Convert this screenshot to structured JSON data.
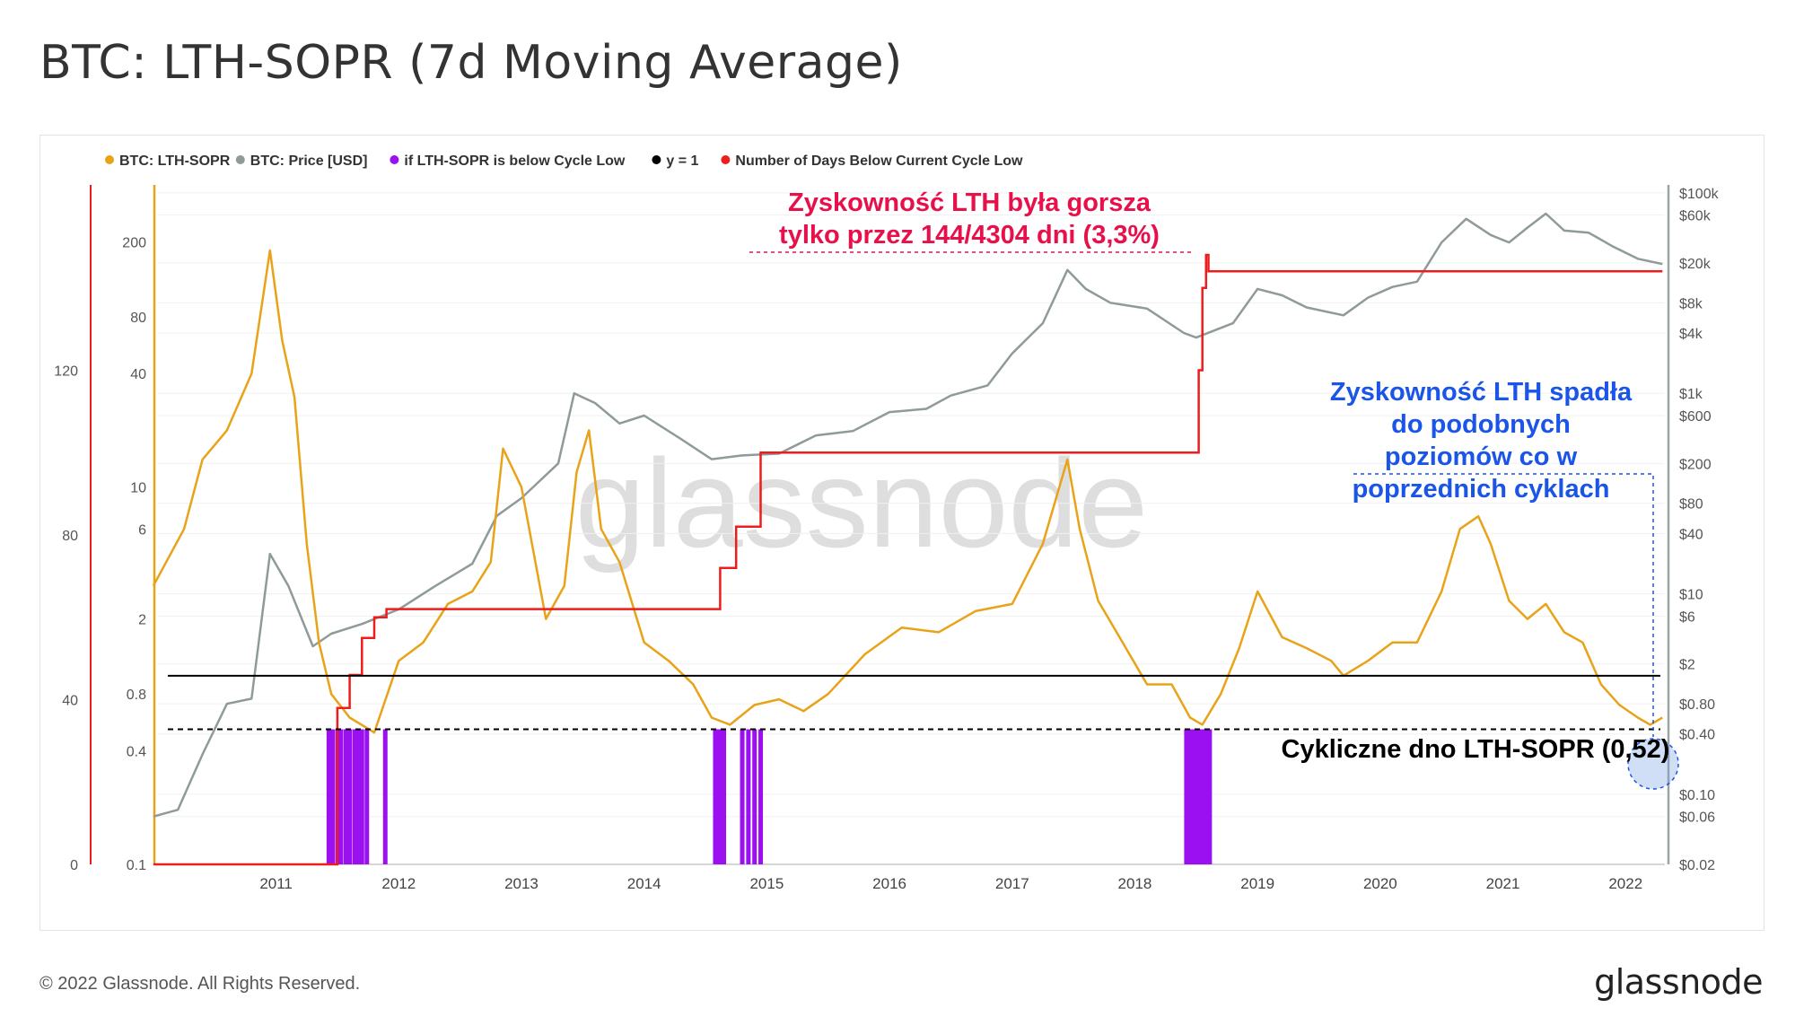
{
  "title": "BTC: LTH-SOPR (7d Moving Average)",
  "footer": {
    "copyright": "© 2022 Glassnode. All Rights Reserved.",
    "brand": "glassnode"
  },
  "watermark": "glassnode",
  "colors": {
    "sopr": "#e8a318",
    "price": "#8f9a9a",
    "below": "#9b10f0",
    "one": "#000000",
    "days": "#ee1c1c",
    "note_red": "#e8104a",
    "note_blue": "#1a55e8"
  },
  "chart_data": {
    "type": "line",
    "legend_position": "top-left",
    "legend": [
      {
        "name": "BTC: LTH-SOPR",
        "color": "#e8a318"
      },
      {
        "name": "BTC: Price [USD]",
        "color": "#8f9a9a"
      },
      {
        "name": "if LTH-SOPR is below Cycle Low",
        "color": "#9b10f0"
      },
      {
        "name": "y = 1",
        "color": "#000000"
      },
      {
        "name": "Number of Days Below Current Cycle Low",
        "color": "#ee1c1c"
      }
    ],
    "x_ticks": [
      "2011",
      "2012",
      "2013",
      "2014",
      "2015",
      "2016",
      "2017",
      "2018",
      "2019",
      "2020",
      "2021",
      "2022"
    ],
    "y_days_ticks": [
      "0",
      "40",
      "80",
      "120"
    ],
    "y_days_range": [
      0,
      165
    ],
    "y_sopr_ticks": [
      "0.1",
      "0.4",
      "0.8",
      "2",
      "6",
      "10",
      "40",
      "80",
      "200"
    ],
    "y_sopr_range": [
      0.1,
      400
    ],
    "y_sopr_scale": "log",
    "y_price_ticks": [
      "$0.02",
      "$0.06",
      "$0.10",
      "$0.40",
      "$0.80",
      "$2",
      "$6",
      "$10",
      "$40",
      "$80",
      "$200",
      "$600",
      "$1k",
      "$4k",
      "$8k",
      "$20k",
      "$60k",
      "$100k"
    ],
    "y_price_range": [
      0.02,
      120000
    ],
    "y_price_scale": "log",
    "reference_lines": [
      {
        "name": "y = 1",
        "value": 1,
        "style": "solid"
      },
      {
        "name": "cycle low",
        "value": 0.52,
        "style": "dashed"
      }
    ],
    "series": [
      {
        "name": "BTC: LTH-SOPR",
        "x": [
          2010.5,
          2010.75,
          2010.9,
          2011.1,
          2011.3,
          2011.45,
          2011.55,
          2011.65,
          2011.75,
          2011.85,
          2011.95,
          2012.1,
          2012.3,
          2012.5,
          2012.7,
          2012.9,
          2013.1,
          2013.25,
          2013.35,
          2013.5,
          2013.7,
          2013.85,
          2013.95,
          2014.05,
          2014.15,
          2014.3,
          2014.5,
          2014.7,
          2014.9,
          2015.05,
          2015.2,
          2015.4,
          2015.6,
          2015.8,
          2016.0,
          2016.3,
          2016.6,
          2016.9,
          2017.2,
          2017.5,
          2017.75,
          2017.95,
          2018.05,
          2018.2,
          2018.4,
          2018.6,
          2018.8,
          2018.95,
          2019.05,
          2019.2,
          2019.35,
          2019.5,
          2019.7,
          2019.9,
          2020.1,
          2020.2,
          2020.4,
          2020.6,
          2020.8,
          2021.0,
          2021.15,
          2021.3,
          2021.4,
          2021.55,
          2021.7,
          2021.85,
          2022.0,
          2022.15,
          2022.3,
          2022.45,
          2022.6,
          2022.7,
          2022.8
        ],
        "values": [
          3.0,
          6.0,
          14.0,
          20.0,
          40.0,
          180.0,
          60.0,
          30.0,
          5.0,
          1.5,
          0.8,
          0.6,
          0.5,
          1.2,
          1.5,
          2.4,
          2.8,
          4.0,
          16.0,
          10.0,
          2.0,
          3.0,
          12.0,
          20.0,
          6.0,
          4.0,
          1.5,
          1.2,
          0.9,
          0.6,
          0.55,
          0.7,
          0.75,
          0.65,
          0.8,
          1.3,
          1.8,
          1.7,
          2.2,
          2.4,
          5.0,
          14.0,
          6.0,
          2.5,
          1.5,
          0.9,
          0.9,
          0.6,
          0.55,
          0.8,
          1.4,
          2.8,
          1.6,
          1.4,
          1.2,
          1.0,
          1.2,
          1.5,
          1.5,
          2.8,
          6.0,
          7.0,
          5.0,
          2.5,
          2.0,
          2.4,
          1.7,
          1.5,
          0.9,
          0.7,
          0.6,
          0.55,
          0.6
        ]
      },
      {
        "name": "BTC: Price [USD]",
        "x": [
          2010.5,
          2010.7,
          2010.9,
          2011.1,
          2011.3,
          2011.45,
          2011.6,
          2011.8,
          2011.95,
          2012.2,
          2012.5,
          2012.8,
          2013.1,
          2013.3,
          2013.5,
          2013.8,
          2013.93,
          2014.1,
          2014.3,
          2014.5,
          2014.8,
          2015.05,
          2015.3,
          2015.6,
          2015.9,
          2016.2,
          2016.5,
          2016.8,
          2017.0,
          2017.3,
          2017.5,
          2017.75,
          2017.95,
          2018.1,
          2018.3,
          2018.6,
          2018.9,
          2019.0,
          2019.3,
          2019.5,
          2019.7,
          2019.9,
          2020.2,
          2020.4,
          2020.6,
          2020.8,
          2021.0,
          2021.2,
          2021.4,
          2021.55,
          2021.7,
          2021.85,
          2022.0,
          2022.2,
          2022.4,
          2022.6,
          2022.8
        ],
        "values": [
          0.06,
          0.07,
          0.25,
          0.8,
          0.9,
          25.0,
          12.0,
          3.0,
          4.0,
          5.0,
          7.0,
          12.0,
          20.0,
          60.0,
          90.0,
          200.0,
          1000.0,
          800.0,
          500.0,
          600.0,
          350.0,
          220.0,
          240.0,
          250.0,
          380.0,
          420.0,
          650.0,
          700.0,
          950.0,
          1200.0,
          2500.0,
          5000.0,
          17000.0,
          11000.0,
          8000.0,
          7000.0,
          4000.0,
          3600.0,
          5000.0,
          11000.0,
          9500.0,
          7200.0,
          6000.0,
          9000.0,
          11500.0,
          13000.0,
          32000.0,
          55000.0,
          38000.0,
          32000.0,
          45000.0,
          62000.0,
          42000.0,
          40000.0,
          29000.0,
          22000.0,
          19500.0
        ]
      },
      {
        "name": "Number of Days Below Current Cycle Low",
        "x": [
          2010.5,
          2011.9,
          2012.0,
          2012.1,
          2012.2,
          2012.3,
          2012.4,
          2015.05,
          2015.12,
          2015.25,
          2015.45,
          2018.95,
          2019.02,
          2019.05,
          2019.08,
          2019.1,
          2022.8
        ],
        "values": [
          0,
          0,
          38,
          46,
          55,
          60,
          62,
          62,
          72,
          82,
          100,
          100,
          120,
          140,
          148,
          144,
          144
        ]
      },
      {
        "name": "if LTH-SOPR is below Cycle Low",
        "x": [
          2011.93,
          2011.96,
          2012.0,
          2012.03,
          2012.07,
          2012.1,
          2012.14,
          2012.17,
          2012.2,
          2012.24,
          2012.39,
          2015.08,
          2015.1,
          2015.13,
          2015.15,
          2015.3,
          2015.35,
          2015.4,
          2015.45,
          2018.92,
          2018.95,
          2018.98,
          2019.0,
          2019.02,
          2019.05,
          2019.07,
          2019.09,
          2019.11
        ],
        "values": [
          0.52,
          0.52,
          0.52,
          0.52,
          0.52,
          0.52,
          0.52,
          0.52,
          0.52,
          0.52,
          0.52,
          0.52,
          0.52,
          0.52,
          0.52,
          0.52,
          0.52,
          0.52,
          0.52,
          0.52,
          0.52,
          0.52,
          0.52,
          0.52,
          0.52,
          0.52,
          0.52,
          0.52
        ]
      }
    ],
    "annotations": [
      {
        "lines": [
          "Zyskowność LTH była gorsza",
          "tylko przez 144/4304 dni (3,3%)"
        ],
        "color": "#e8104a"
      },
      {
        "lines": [
          "Zyskowność LTH spadła",
          "do podobnych",
          "poziomów co w",
          "poprzednich cyklach"
        ],
        "color": "#1a55e8"
      },
      {
        "lines": [
          "Cykliczne dno LTH-SOPR (0,52)"
        ],
        "color": "#000000"
      }
    ]
  }
}
